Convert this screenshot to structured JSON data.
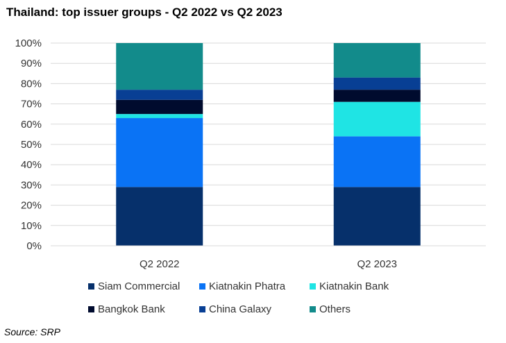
{
  "title": "Thailand: top issuer groups - Q2 2022 vs Q2 2023",
  "source": "Source: SRP",
  "chart_data": {
    "type": "bar",
    "stacked": true,
    "categories": [
      "Q2 2022",
      "Q2 2023"
    ],
    "series": [
      {
        "name": "Siam Commercial",
        "color": "#06306b",
        "values": [
          29,
          29
        ]
      },
      {
        "name": "Kiatnakin Phatra",
        "color": "#0a73f5",
        "values": [
          34,
          25
        ]
      },
      {
        "name": "Kiatnakin Bank",
        "color": "#1fe4e4",
        "values": [
          2,
          17
        ]
      },
      {
        "name": "Bangkok Bank",
        "color": "#000b2e",
        "values": [
          7,
          6
        ]
      },
      {
        "name": "China Galaxy",
        "color": "#083f94",
        "values": [
          5,
          6
        ]
      },
      {
        "name": "Others",
        "color": "#128b8b",
        "values": [
          23,
          17
        ]
      }
    ],
    "ylim": [
      0,
      100
    ],
    "yticks": [
      "0%",
      "10%",
      "20%",
      "30%",
      "40%",
      "50%",
      "60%",
      "70%",
      "80%",
      "90%",
      "100%"
    ],
    "xlabel": "",
    "ylabel": "",
    "grid": true,
    "legend": "bottom"
  }
}
